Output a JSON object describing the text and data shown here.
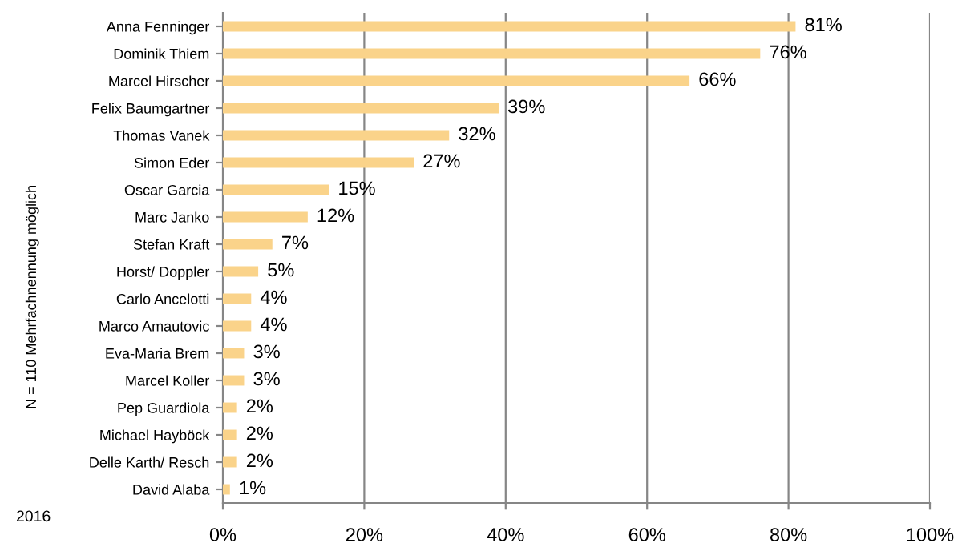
{
  "chart_data": {
    "type": "bar",
    "orientation": "horizontal",
    "categories": [
      "Anna Fenninger",
      "Dominik Thiem",
      "Marcel Hirscher",
      "Felix Baumgartner",
      "Thomas Vanek",
      "Simon Eder",
      "Oscar Garcia",
      "Marc Janko",
      "Stefan Kraft",
      "Horst/ Doppler",
      "Carlo Ancelotti",
      "Marco Amautovic",
      "Eva-Maria Brem",
      "Marcel Koller",
      "Pep Guardiola",
      "Michael Hayböck",
      "Delle Karth/ Resch",
      "David Alaba"
    ],
    "values": [
      81,
      76,
      66,
      39,
      32,
      27,
      15,
      12,
      7,
      5,
      4,
      4,
      3,
      3,
      2,
      2,
      2,
      1
    ],
    "value_labels": [
      "81%",
      "76%",
      "66%",
      "39%",
      "32%",
      "27%",
      "15%",
      "12%",
      "7%",
      "5%",
      "4%",
      "4%",
      "3%",
      "3%",
      "2%",
      "2%",
      "2%",
      "1%"
    ],
    "color": "#fad38a",
    "xlim": [
      0,
      100
    ],
    "xticks": [
      {
        "value": 0,
        "label": "0%"
      },
      {
        "value": 20,
        "label": "20%"
      },
      {
        "value": 40,
        "label": "40%"
      },
      {
        "value": 60,
        "label": "60%"
      },
      {
        "value": 80,
        "label": "80%"
      },
      {
        "value": 100,
        "label": "100%"
      }
    ],
    "ylabel": "N = 110 Mehrfachnennung möglich",
    "annotations": [
      "2016"
    ],
    "grid": "x",
    "legend": false
  }
}
